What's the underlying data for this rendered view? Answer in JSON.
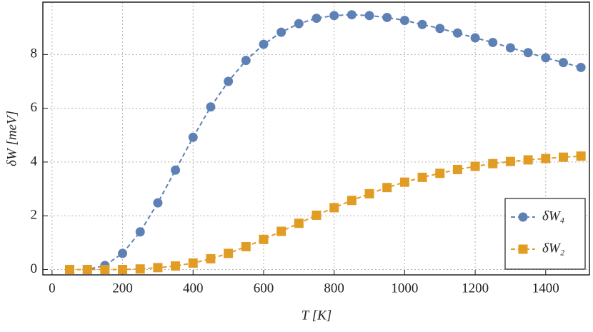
{
  "chart_data": {
    "type": "line",
    "xlabel": "T [K]",
    "ylabel": "δW [meV]",
    "x": [
      50,
      100,
      150,
      200,
      250,
      300,
      350,
      400,
      450,
      500,
      550,
      600,
      650,
      700,
      750,
      800,
      850,
      900,
      950,
      1000,
      1050,
      1100,
      1150,
      1200,
      1250,
      1300,
      1350,
      1400,
      1450,
      1500
    ],
    "series": [
      {
        "name": "δW₄",
        "color": "#5e81b5",
        "marker": "circle",
        "values": [
          0,
          0,
          0.15,
          0.6,
          1.4,
          2.48,
          3.7,
          4.92,
          6.05,
          7.0,
          7.78,
          8.38,
          8.83,
          9.15,
          9.35,
          9.45,
          9.48,
          9.45,
          9.38,
          9.27,
          9.12,
          8.97,
          8.8,
          8.62,
          8.45,
          8.25,
          8.07,
          7.88,
          7.7,
          7.52
        ]
      },
      {
        "name": "δW₂",
        "color": "#e19c24",
        "marker": "square",
        "values": [
          0,
          0,
          0,
          0,
          0.02,
          0.07,
          0.13,
          0.24,
          0.4,
          0.6,
          0.85,
          1.12,
          1.42,
          1.72,
          2.02,
          2.3,
          2.57,
          2.82,
          3.05,
          3.25,
          3.43,
          3.58,
          3.72,
          3.84,
          3.94,
          4.02,
          4.08,
          4.13,
          4.18,
          4.22
        ]
      }
    ],
    "xlim": [
      -26,
      1524
    ],
    "ylim": [
      -0.2,
      9.95
    ],
    "xticks": [
      0,
      200,
      400,
      600,
      800,
      1000,
      1200,
      1400
    ],
    "yticks": [
      0,
      2,
      4,
      6,
      8
    ],
    "grid": true,
    "legend": "lower right"
  }
}
